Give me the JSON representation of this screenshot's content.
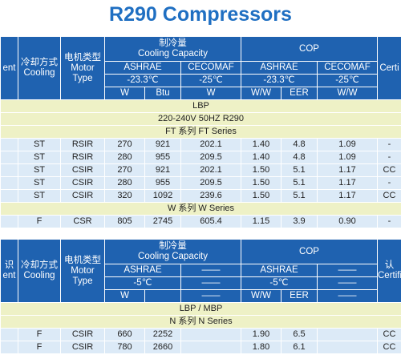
{
  "title": "R290 Compressors",
  "tables": [
    {
      "header": {
        "left": [
          "ent"
        ],
        "cooling": [
          "冷却方式",
          "Cooling"
        ],
        "motor": [
          "电机类型",
          "Motor",
          "Type"
        ],
        "capacity": [
          "制冷量",
          "Cooling Capacity"
        ],
        "cop": [
          "COP"
        ],
        "cert": [
          "Certi"
        ],
        "standards": [
          "ASHRAE",
          "CECOMAF",
          "ASHRAE",
          "CECOMAF"
        ],
        "temps": [
          "-23.3℃",
          "-25℃",
          "-23.3℃",
          "-25℃"
        ],
        "units": [
          "W",
          "Btu",
          "W",
          "W/W",
          "EER",
          "W/W"
        ]
      },
      "sections": [
        {
          "bands": [
            "LBP",
            "220-240V 50HZ R290",
            "FT 系列 FT Series"
          ],
          "rows": [
            [
              "ST",
              "RSIR",
              "270",
              "921",
              "202.1",
              "1.40",
              "4.8",
              "1.09",
              "-"
            ],
            [
              "ST",
              "RSIR",
              "280",
              "955",
              "209.5",
              "1.40",
              "4.8",
              "1.09",
              "-"
            ],
            [
              "ST",
              "CSIR",
              "270",
              "921",
              "202.1",
              "1.50",
              "5.1",
              "1.17",
              "CC"
            ],
            [
              "ST",
              "CSIR",
              "280",
              "955",
              "209.5",
              "1.50",
              "5.1",
              "1.17",
              "-"
            ],
            [
              "ST",
              "CSIR",
              "320",
              "1092",
              "239.6",
              "1.50",
              "5.1",
              "1.17",
              "CC"
            ]
          ]
        },
        {
          "bands": [
            "W 系列 W Series"
          ],
          "rows": [
            [
              "F",
              "CSR",
              "805",
              "2745",
              "605.4",
              "1.15",
              "3.9",
              "0.90",
              "-"
            ]
          ]
        }
      ]
    },
    {
      "header": {
        "left": [
          "识",
          "ent"
        ],
        "cooling": [
          "冷却方式",
          "Cooling"
        ],
        "motor": [
          "电机类型",
          "Motor",
          "Type"
        ],
        "capacity": [
          "制冷量",
          "Cooling Capacity"
        ],
        "cop": [
          "COP"
        ],
        "cert": [
          "认",
          "Certifi"
        ],
        "standards": [
          "ASHRAE",
          "——",
          "ASHRAE",
          "——"
        ],
        "temps": [
          "-5℃",
          "——",
          "-5℃",
          "——"
        ],
        "units": [
          "W",
          null,
          "——",
          "W/W",
          "EER",
          "——"
        ]
      },
      "sections": [
        {
          "bands": [
            "LBP / MBP",
            "N 系列 N Series"
          ],
          "rows": [
            [
              "F",
              "CSIR",
              "660",
              "2252",
              null,
              "1.90",
              "6.5",
              null,
              "CC"
            ],
            [
              "F",
              "CSIR",
              "780",
              "2660",
              null,
              "1.80",
              "6.1",
              null,
              "CC"
            ]
          ]
        }
      ]
    }
  ]
}
